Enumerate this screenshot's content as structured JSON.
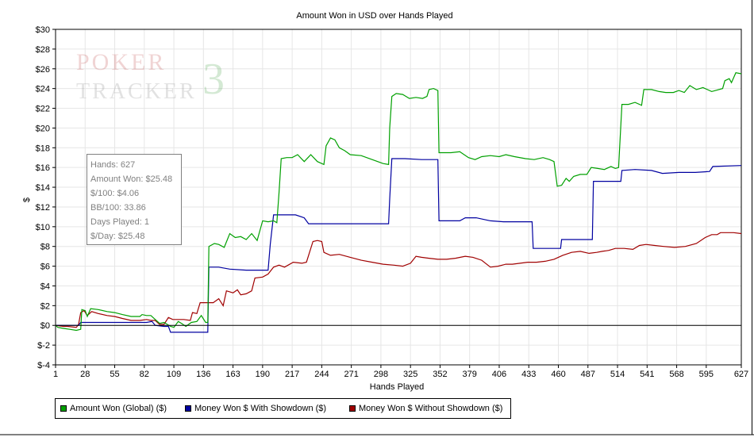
{
  "chart_data": {
    "type": "line",
    "title": "Amount Won in USD over Hands Played",
    "xlabel": "Hands Played",
    "ylabel": "$",
    "xlim": [
      1,
      627
    ],
    "ylim": [
      -4,
      30
    ],
    "x_ticks": [
      1,
      28,
      55,
      82,
      109,
      136,
      163,
      190,
      217,
      244,
      271,
      298,
      325,
      352,
      379,
      406,
      433,
      460,
      487,
      514,
      541,
      568,
      595,
      627
    ],
    "y_ticks": [
      -4,
      -2,
      0,
      2,
      4,
      6,
      8,
      10,
      12,
      14,
      16,
      18,
      20,
      22,
      24,
      26,
      28,
      30
    ],
    "y_tick_labels": [
      "$-4",
      "$-2",
      "$0",
      "$2",
      "$4",
      "$6",
      "$8",
      "$10",
      "$12",
      "$14",
      "$16",
      "$18",
      "$20",
      "$22",
      "$24",
      "$26",
      "$28",
      "$30"
    ],
    "grid": true,
    "legend_position": "bottom-left",
    "series": [
      {
        "name": "Amount Won (Global) ($)",
        "color": "#00a000",
        "points": [
          [
            1,
            0
          ],
          [
            3,
            -0.2
          ],
          [
            8,
            -0.3
          ],
          [
            14,
            -0.4
          ],
          [
            20,
            -0.5
          ],
          [
            24,
            -0.4
          ],
          [
            25,
            1.6
          ],
          [
            28,
            1.5
          ],
          [
            30,
            0.9
          ],
          [
            33,
            1.7
          ],
          [
            40,
            1.6
          ],
          [
            48,
            1.4
          ],
          [
            55,
            1.3
          ],
          [
            62,
            1.1
          ],
          [
            70,
            0.9
          ],
          [
            78,
            0.9
          ],
          [
            80,
            1.1
          ],
          [
            84,
            1.0
          ],
          [
            88,
            1.0
          ],
          [
            92,
            0.6
          ],
          [
            96,
            0.2
          ],
          [
            100,
            0.3
          ],
          [
            103,
            0.1
          ],
          [
            106,
            -0.1
          ],
          [
            109,
            -0.2
          ],
          [
            113,
            0.4
          ],
          [
            116,
            0.2
          ],
          [
            120,
            -0.1
          ],
          [
            125,
            0.3
          ],
          [
            130,
            0.4
          ],
          [
            134,
            1.0
          ],
          [
            138,
            0.3
          ],
          [
            140,
            0.3
          ],
          [
            141,
            8.0
          ],
          [
            146,
            8.3
          ],
          [
            150,
            8.2
          ],
          [
            155,
            7.9
          ],
          [
            160,
            9.3
          ],
          [
            165,
            8.9
          ],
          [
            170,
            9.0
          ],
          [
            175,
            8.7
          ],
          [
            180,
            9.3
          ],
          [
            185,
            8.6
          ],
          [
            190,
            10.6
          ],
          [
            195,
            10.5
          ],
          [
            200,
            10.6
          ],
          [
            203,
            10.4
          ],
          [
            205,
            13.5
          ],
          [
            207,
            16.9
          ],
          [
            212,
            17.0
          ],
          [
            217,
            17.0
          ],
          [
            222,
            17.3
          ],
          [
            228,
            16.6
          ],
          [
            234,
            17.3
          ],
          [
            240,
            16.6
          ],
          [
            246,
            16.3
          ],
          [
            248,
            18.2
          ],
          [
            252,
            19.0
          ],
          [
            256,
            18.8
          ],
          [
            260,
            18.0
          ],
          [
            265,
            17.7
          ],
          [
            270,
            17.3
          ],
          [
            280,
            17.2
          ],
          [
            290,
            16.8
          ],
          [
            300,
            16.4
          ],
          [
            305,
            16.3
          ],
          [
            306,
            20.0
          ],
          [
            308,
            23.2
          ],
          [
            312,
            23.5
          ],
          [
            318,
            23.4
          ],
          [
            324,
            23.0
          ],
          [
            330,
            23.1
          ],
          [
            336,
            23.0
          ],
          [
            340,
            23.2
          ],
          [
            342,
            23.9
          ],
          [
            346,
            24.0
          ],
          [
            350,
            23.8
          ],
          [
            351,
            17.5
          ],
          [
            356,
            17.5
          ],
          [
            362,
            17.5
          ],
          [
            370,
            17.6
          ],
          [
            378,
            17.0
          ],
          [
            384,
            16.8
          ],
          [
            390,
            17.1
          ],
          [
            398,
            17.2
          ],
          [
            406,
            17.1
          ],
          [
            412,
            17.3
          ],
          [
            420,
            17.1
          ],
          [
            430,
            16.9
          ],
          [
            438,
            16.8
          ],
          [
            446,
            17.0
          ],
          [
            452,
            16.8
          ],
          [
            456,
            16.6
          ],
          [
            459,
            14.1
          ],
          [
            463,
            14.2
          ],
          [
            467,
            14.9
          ],
          [
            470,
            14.6
          ],
          [
            474,
            15.1
          ],
          [
            480,
            15.3
          ],
          [
            486,
            15.3
          ],
          [
            490,
            16.0
          ],
          [
            496,
            15.9
          ],
          [
            502,
            15.8
          ],
          [
            508,
            16.1
          ],
          [
            512,
            15.9
          ],
          [
            515,
            16.0
          ],
          [
            518,
            22.4
          ],
          [
            524,
            22.4
          ],
          [
            530,
            22.6
          ],
          [
            536,
            22.3
          ],
          [
            538,
            23.9
          ],
          [
            545,
            23.9
          ],
          [
            552,
            23.7
          ],
          [
            558,
            23.6
          ],
          [
            565,
            23.6
          ],
          [
            570,
            23.8
          ],
          [
            575,
            23.6
          ],
          [
            580,
            24.3
          ],
          [
            586,
            23.9
          ],
          [
            592,
            24.1
          ],
          [
            600,
            23.7
          ],
          [
            610,
            24.0
          ],
          [
            612,
            24.8
          ],
          [
            616,
            25.0
          ],
          [
            618,
            24.6
          ],
          [
            622,
            25.6
          ],
          [
            627,
            25.5
          ]
        ]
      },
      {
        "name": "Money Won $ With Showdown ($)",
        "color": "#0000a0",
        "points": [
          [
            1,
            0
          ],
          [
            4,
            0
          ],
          [
            8,
            0
          ],
          [
            12,
            0
          ],
          [
            20,
            0
          ],
          [
            22,
            0
          ],
          [
            24,
            0.3
          ],
          [
            30,
            0.3
          ],
          [
            40,
            0.3
          ],
          [
            55,
            0.3
          ],
          [
            70,
            0.3
          ],
          [
            84,
            0.3
          ],
          [
            89,
            0.4
          ],
          [
            92,
            0
          ],
          [
            100,
            -0.1
          ],
          [
            104,
            -0.1
          ],
          [
            106,
            -0.7
          ],
          [
            115,
            -0.7
          ],
          [
            125,
            -0.7
          ],
          [
            140,
            -0.7
          ],
          [
            141,
            5.9
          ],
          [
            150,
            5.9
          ],
          [
            160,
            5.7
          ],
          [
            175,
            5.6
          ],
          [
            190,
            5.6
          ],
          [
            195,
            5.6
          ],
          [
            197,
            8.2
          ],
          [
            200,
            11.2
          ],
          [
            210,
            11.2
          ],
          [
            220,
            11.2
          ],
          [
            228,
            10.9
          ],
          [
            232,
            10.3
          ],
          [
            245,
            10.3
          ],
          [
            260,
            10.3
          ],
          [
            275,
            10.3
          ],
          [
            290,
            10.3
          ],
          [
            305,
            10.3
          ],
          [
            306,
            12.8
          ],
          [
            308,
            16.9
          ],
          [
            320,
            16.9
          ],
          [
            335,
            16.8
          ],
          [
            350,
            16.8
          ],
          [
            351,
            10.6
          ],
          [
            360,
            10.6
          ],
          [
            370,
            10.6
          ],
          [
            375,
            10.9
          ],
          [
            385,
            10.9
          ],
          [
            398,
            10.6
          ],
          [
            410,
            10.5
          ],
          [
            425,
            10.5
          ],
          [
            436,
            10.5
          ],
          [
            437,
            7.8
          ],
          [
            450,
            7.8
          ],
          [
            462,
            7.8
          ],
          [
            463,
            8.7
          ],
          [
            480,
            8.7
          ],
          [
            491,
            8.7
          ],
          [
            492,
            14.6
          ],
          [
            505,
            14.6
          ],
          [
            517,
            14.6
          ],
          [
            518,
            15.7
          ],
          [
            530,
            15.8
          ],
          [
            545,
            15.7
          ],
          [
            555,
            15.4
          ],
          [
            570,
            15.5
          ],
          [
            585,
            15.5
          ],
          [
            598,
            15.6
          ],
          [
            601,
            16.1
          ],
          [
            627,
            16.2
          ]
        ]
      },
      {
        "name": "Money Won $ Without Showdown ($)",
        "color": "#a00000",
        "points": [
          [
            1,
            0
          ],
          [
            8,
            -0.1
          ],
          [
            12,
            -0.1
          ],
          [
            20,
            -0.2
          ],
          [
            22,
            0.1
          ],
          [
            24,
            1.3
          ],
          [
            27,
            1.5
          ],
          [
            30,
            1.0
          ],
          [
            34,
            1.4
          ],
          [
            40,
            1.2
          ],
          [
            48,
            1.0
          ],
          [
            55,
            0.9
          ],
          [
            62,
            0.7
          ],
          [
            70,
            0.5
          ],
          [
            78,
            0.5
          ],
          [
            84,
            0.6
          ],
          [
            88,
            0.5
          ],
          [
            92,
            0.5
          ],
          [
            96,
            0.1
          ],
          [
            100,
            0.1
          ],
          [
            104,
            0.8
          ],
          [
            108,
            0.6
          ],
          [
            112,
            0.6
          ],
          [
            118,
            0.6
          ],
          [
            124,
            0.5
          ],
          [
            126,
            1.3
          ],
          [
            130,
            1.2
          ],
          [
            133,
            2.3
          ],
          [
            138,
            2.3
          ],
          [
            145,
            2.3
          ],
          [
            150,
            2.7
          ],
          [
            154,
            2.0
          ],
          [
            157,
            3.5
          ],
          [
            160,
            3.4
          ],
          [
            163,
            3.3
          ],
          [
            167,
            3.6
          ],
          [
            170,
            3.1
          ],
          [
            175,
            3.2
          ],
          [
            180,
            3.5
          ],
          [
            183,
            4.8
          ],
          [
            190,
            4.9
          ],
          [
            195,
            5.2
          ],
          [
            200,
            5.9
          ],
          [
            205,
            6.1
          ],
          [
            210,
            5.9
          ],
          [
            218,
            6.4
          ],
          [
            226,
            6.3
          ],
          [
            230,
            6.4
          ],
          [
            236,
            8.5
          ],
          [
            240,
            8.6
          ],
          [
            244,
            8.5
          ],
          [
            246,
            7.4
          ],
          [
            252,
            7.1
          ],
          [
            260,
            7.2
          ],
          [
            270,
            6.9
          ],
          [
            280,
            6.6
          ],
          [
            290,
            6.4
          ],
          [
            300,
            6.2
          ],
          [
            310,
            6.1
          ],
          [
            318,
            6.0
          ],
          [
            325,
            6.3
          ],
          [
            330,
            7.0
          ],
          [
            335,
            6.9
          ],
          [
            342,
            6.8
          ],
          [
            350,
            6.7
          ],
          [
            358,
            6.7
          ],
          [
            366,
            6.8
          ],
          [
            375,
            7.0
          ],
          [
            382,
            6.9
          ],
          [
            390,
            6.6
          ],
          [
            398,
            5.9
          ],
          [
            405,
            6.0
          ],
          [
            412,
            6.2
          ],
          [
            418,
            6.2
          ],
          [
            425,
            6.3
          ],
          [
            432,
            6.4
          ],
          [
            440,
            6.4
          ],
          [
            448,
            6.5
          ],
          [
            456,
            6.7
          ],
          [
            464,
            7.1
          ],
          [
            472,
            7.4
          ],
          [
            480,
            7.5
          ],
          [
            488,
            7.3
          ],
          [
            495,
            7.4
          ],
          [
            500,
            7.5
          ],
          [
            506,
            7.6
          ],
          [
            512,
            7.8
          ],
          [
            520,
            7.8
          ],
          [
            528,
            7.7
          ],
          [
            534,
            8.1
          ],
          [
            540,
            8.2
          ],
          [
            548,
            8.1
          ],
          [
            556,
            8.0
          ],
          [
            566,
            7.9
          ],
          [
            576,
            8.0
          ],
          [
            586,
            8.3
          ],
          [
            594,
            8.9
          ],
          [
            600,
            9.2
          ],
          [
            605,
            9.2
          ],
          [
            608,
            9.4
          ],
          [
            615,
            9.4
          ],
          [
            620,
            9.4
          ],
          [
            627,
            9.3
          ]
        ]
      }
    ]
  },
  "stats": {
    "hands": "Hands: 627",
    "amount_won": "Amount Won: $25.48",
    "per_100": "$/100: $4.06",
    "bb_100": "BB/100: 33.86",
    "days": "Days Played: 1",
    "per_day": "$/Day: $25.48"
  },
  "watermark": {
    "line1": "POKER",
    "line2": "TRACKER",
    "mark": "3"
  }
}
